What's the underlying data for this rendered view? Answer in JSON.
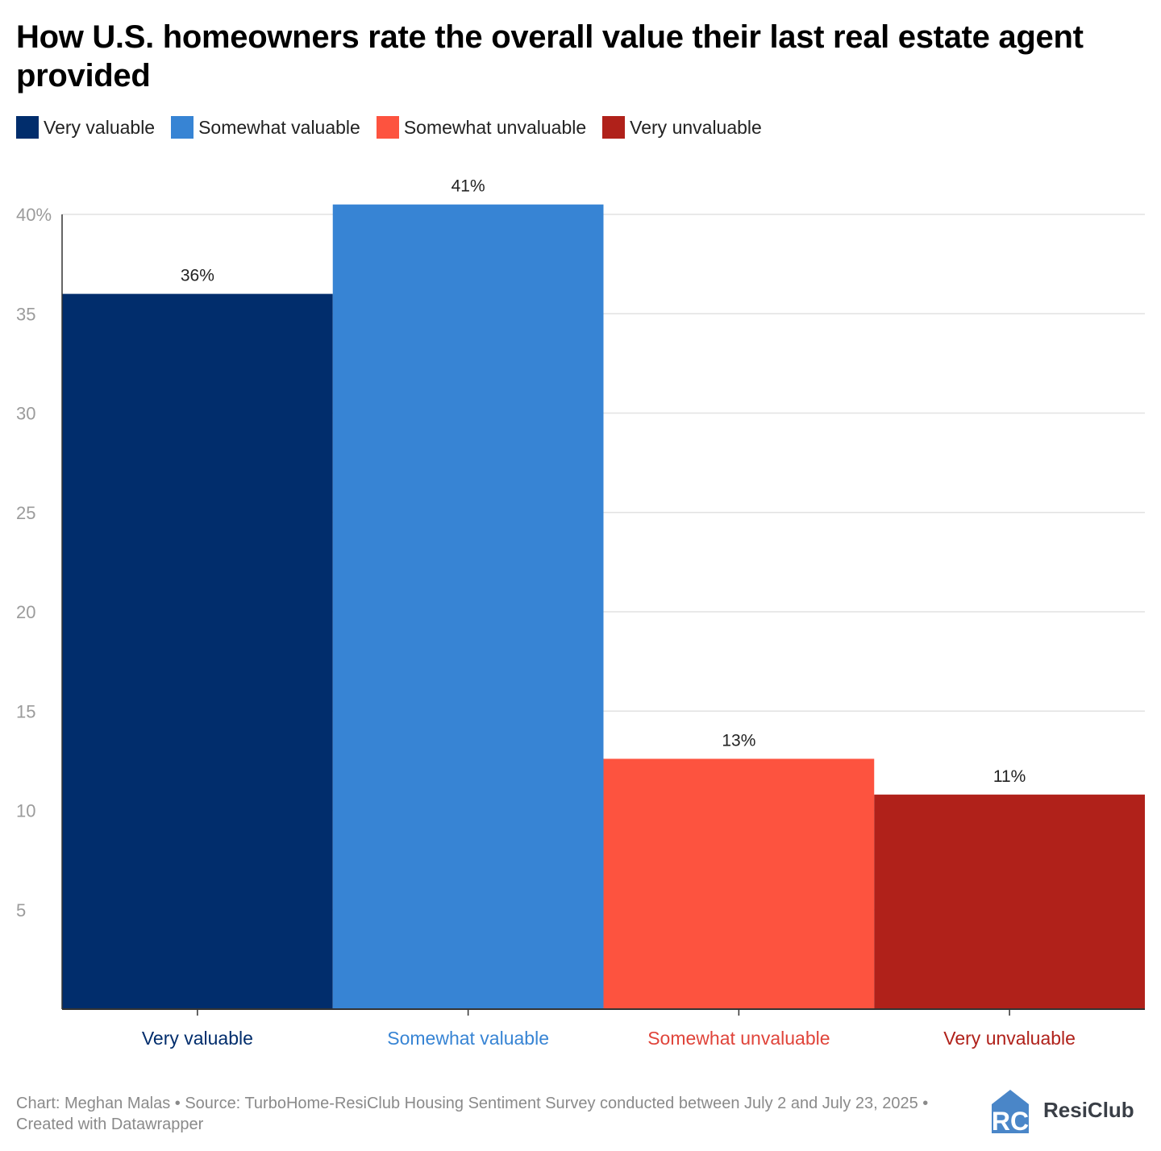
{
  "title": "How U.S. homeowners rate the overall value their last real estate agent provided",
  "legend": [
    {
      "label": "Very valuable",
      "color": "#012d6c"
    },
    {
      "label": "Somewhat valuable",
      "color": "#3784d4"
    },
    {
      "label": "Somewhat unvaluable",
      "color": "#fd533f"
    },
    {
      "label": "Very unvaluable",
      "color": "#b0211a"
    }
  ],
  "chart_data": {
    "type": "bar",
    "title": "How U.S. homeowners rate the overall value their last real estate agent provided",
    "categories": [
      "Very valuable",
      "Somewhat valuable",
      "Somewhat unvaluable",
      "Very unvaluable"
    ],
    "values": [
      36,
      40.5,
      12.6,
      10.8
    ],
    "value_labels": [
      "36%",
      "41%",
      "13%",
      "11%"
    ],
    "colors": [
      "#012d6c",
      "#3784d4",
      "#fd533f",
      "#b0211a"
    ],
    "label_colors": [
      "#012d6c",
      "#3784d4",
      "#e0443a",
      "#b0211a"
    ],
    "ylim": [
      0,
      40
    ],
    "yticks": [
      5,
      10,
      15,
      20,
      25,
      30,
      35,
      40
    ],
    "ytick_labels": [
      "5",
      "10",
      "15",
      "20",
      "25",
      "30",
      "35",
      "40%"
    ],
    "xlabel": "",
    "ylabel": "",
    "grid": true
  },
  "footer": "Chart: Meghan Malas • Source: TurboHome-ResiClub Housing Sentiment Survey conducted between July 2 and July 23, 2025 • Created with Datawrapper",
  "logo": {
    "mark": "RC",
    "text": "ResiClub"
  }
}
